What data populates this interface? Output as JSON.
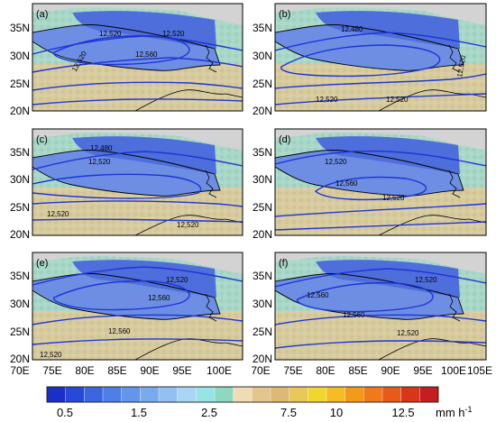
{
  "panels": [
    {
      "label": "(a)",
      "contours": [
        "12,520",
        "12,520",
        "12,560",
        "12,520"
      ]
    },
    {
      "label": "(b)",
      "contours": [
        "12,480",
        "12,520",
        "12,520",
        "12,520"
      ]
    },
    {
      "label": "(c)",
      "contours": [
        "12,480",
        "12,520",
        "12,520",
        "12,520"
      ]
    },
    {
      "label": "(d)",
      "contours": [
        "12,520",
        "12,560",
        "12,520"
      ]
    },
    {
      "label": "(e)",
      "contours": [
        "12,520",
        "12,560",
        "12,560",
        "12,520"
      ]
    },
    {
      "label": "(f)",
      "contours": [
        "12,520",
        "12,560",
        "12,560",
        "12,520"
      ]
    }
  ],
  "axes": {
    "lat_ticks": [
      "35N",
      "30N",
      "25N",
      "20N"
    ],
    "lon_ticks_left": [
      "70E",
      "75E",
      "80E",
      "85E",
      "90E",
      "95E",
      "100E"
    ],
    "lon_ticks_right": [
      "70E",
      "75E",
      "80E",
      "85E",
      "90E",
      "95E",
      "100E",
      "105E"
    ]
  },
  "colorbar": {
    "labels": [
      "0.5",
      "1.5",
      "2.5",
      "7.5",
      "10",
      "12.5"
    ],
    "unit": "mm h",
    "unit_superscript": "-1",
    "colors": [
      "#1a2ec8",
      "#2849d8",
      "#3b66e0",
      "#4d7fe6",
      "#6395ea",
      "#7aaaee",
      "#93c0f2",
      "#a9d6f4",
      "#98e3e6",
      "#8fd8c0",
      "#efdcb5",
      "#e4c58e",
      "#ddb974",
      "#e9c85a",
      "#f2d630",
      "#f5bc26",
      "#f39a1c",
      "#ee7a1a",
      "#e65a1a",
      "#d8361c",
      "#c41e1e"
    ]
  },
  "colors": {
    "contour": "#1f35d6",
    "land_outline": "#000000",
    "missing": "#d3d3d3"
  }
}
